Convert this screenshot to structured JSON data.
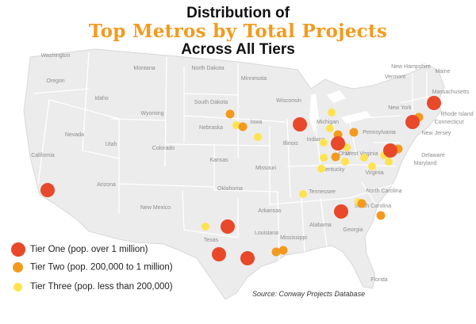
{
  "title": {
    "line1": "Distribution of",
    "line2": "Top Metros by Total Projects",
    "line3": "Across All Tiers"
  },
  "source": "Source: Conway Projects Database",
  "colors": {
    "tier_one": "#e8492a",
    "tier_two": "#f39a1e",
    "tier_three": "#ffe24f",
    "land": "#ececec",
    "border": "#ffffff"
  },
  "legend": [
    {
      "tier": "one",
      "label": "Tier One (pop. over 1 million)"
    },
    {
      "tier": "two",
      "label": "Tier Two (pop. 200,000 to 1 million)"
    },
    {
      "tier": "three",
      "label": "Tier Three (pop. less than 200,000)"
    }
  ],
  "state_labels": [
    "Washington",
    "Oregon",
    "Idaho",
    "Montana",
    "North Dakota",
    "Minnesota",
    "South Dakota",
    "Wyoming",
    "Wisconsin",
    "Michigan",
    "Nebraska",
    "Iowa",
    "Nevada",
    "Utah",
    "Colorado",
    "California",
    "Kansas",
    "Missouri",
    "Illinois",
    "Indiana",
    "Ohio",
    "Kentucky",
    "Tennessee",
    "Arizona",
    "New Mexico",
    "Oklahoma",
    "Arkansas",
    "Texas",
    "Louisiana",
    "Mississippi",
    "Alabama",
    "Georgia",
    "Florida",
    "South Carolina",
    "North Carolina",
    "Virginia",
    "West Virginia",
    "Pennsylvania",
    "New York",
    "Vermont",
    "New Hampshire",
    "Maine",
    "Massachusetts",
    "Rhode Island",
    "Connecticut",
    "New Jersey",
    "Delaware",
    "Maryland"
  ]
}
